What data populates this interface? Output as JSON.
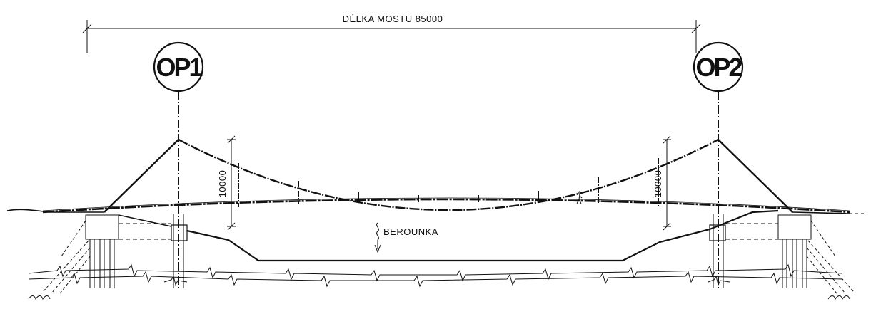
{
  "drawing": {
    "bridge_length_label": "DÉLKA MOSTU 85000",
    "piers": [
      {
        "label": "OP1"
      },
      {
        "label": "OP2"
      }
    ],
    "sag_dimension_left": "10000",
    "sag_dimension_right": "10000",
    "river_label": "BEROUNKA"
  }
}
